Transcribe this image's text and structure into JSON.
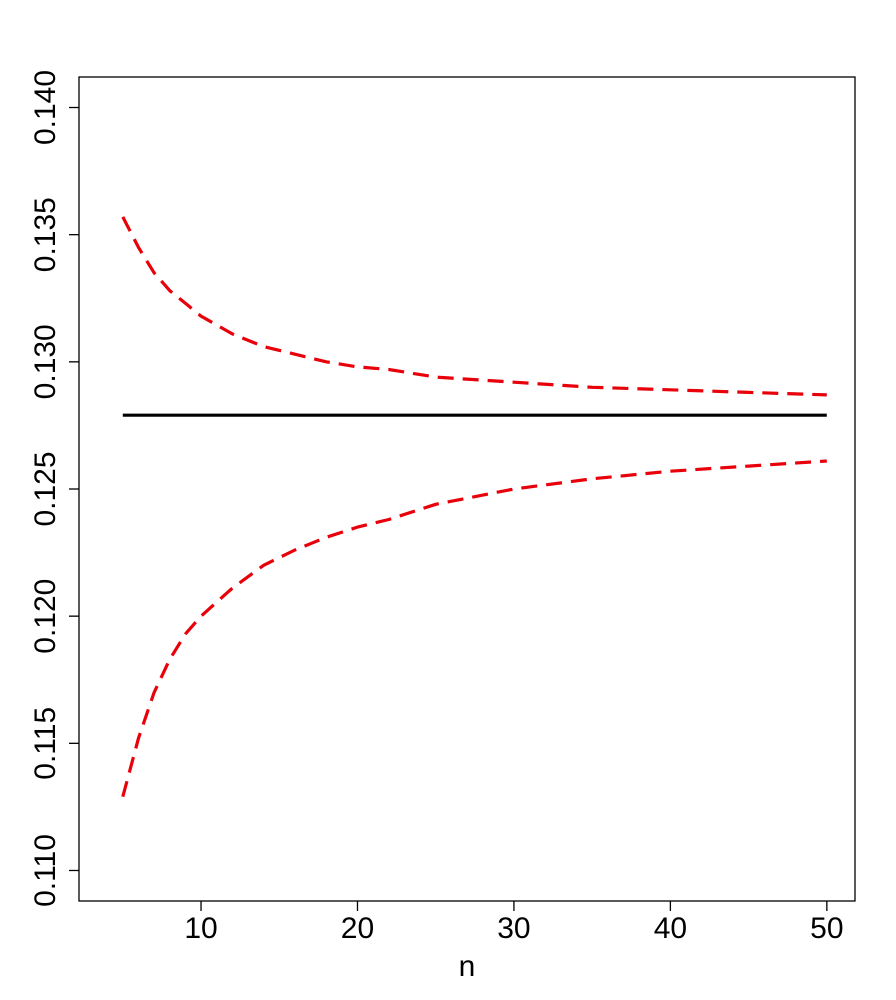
{
  "chart_data": {
    "type": "line",
    "title": "",
    "xlabel": "n",
    "ylabel": "",
    "xlim": [
      2.2,
      51.8
    ],
    "ylim": [
      0.1088,
      0.1412
    ],
    "xticks": [
      10,
      20,
      30,
      40,
      50
    ],
    "xtick_labels": [
      "10",
      "20",
      "30",
      "40",
      "50"
    ],
    "yticks": [
      0.11,
      0.115,
      0.12,
      0.125,
      0.13,
      0.135,
      0.14
    ],
    "ytick_labels": [
      "0.110",
      "0.115",
      "0.120",
      "0.125",
      "0.130",
      "0.135",
      "0.140"
    ],
    "grid": false,
    "legend": "none",
    "series": [
      {
        "style": "solid",
        "color": "#000000",
        "x": [
          5,
          50
        ],
        "y": [
          0.1279,
          0.1279
        ]
      },
      {
        "style": "dashed",
        "color": "#e8000b",
        "x": [
          5,
          6,
          7,
          8,
          9,
          10,
          12,
          14,
          16,
          18,
          20,
          22,
          25,
          30,
          35,
          40,
          45,
          50
        ],
        "y": [
          0.1357,
          0.1345,
          0.1335,
          0.1328,
          0.1323,
          0.1318,
          0.1311,
          0.1306,
          0.1303,
          0.13,
          0.1298,
          0.1297,
          0.1294,
          0.1292,
          0.129,
          0.1289,
          0.1288,
          0.1287
        ]
      },
      {
        "style": "dashed",
        "color": "#e8000b",
        "x": [
          5,
          6,
          7,
          8,
          9,
          10,
          12,
          14,
          16,
          18,
          20,
          22,
          25,
          30,
          35,
          40,
          45,
          50
        ],
        "y": [
          0.1129,
          0.1152,
          0.117,
          0.1183,
          0.1193,
          0.12,
          0.1211,
          0.122,
          0.1226,
          0.1231,
          0.1235,
          0.1238,
          0.1244,
          0.125,
          0.1254,
          0.1257,
          0.1259,
          0.1261
        ]
      }
    ]
  }
}
